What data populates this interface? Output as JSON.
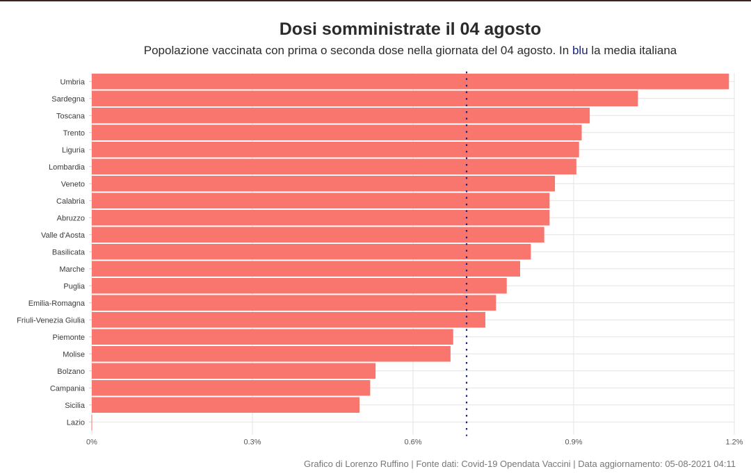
{
  "chart_data": {
    "type": "bar",
    "orientation": "horizontal",
    "title": "Dosi somministrate il 04 agosto",
    "subtitle_parts": [
      "Popolazione vaccinata con prima o seconda dose nella giornata del 04 agosto. In ",
      "blu",
      " la media italiana"
    ],
    "caption": "Grafico di Lorenzo Ruffino | Fonte dati: Covid-19 Opendata Vaccini | Data aggiornamento: 05-08-2021 04:11",
    "xlabel": "",
    "ylabel": "",
    "xlim": [
      0,
      1.2
    ],
    "xticks": [
      0,
      0.3,
      0.6,
      0.9,
      1.2
    ],
    "xtick_labels": [
      "0%",
      "0.3%",
      "0.6%",
      "0.9%",
      "1.2%"
    ],
    "grid": true,
    "categories": [
      "Umbria",
      "Sardegna",
      "Toscana",
      "Trento",
      "Liguria",
      "Lombardia",
      "Veneto",
      "Calabria",
      "Abruzzo",
      "Valle d'Aosta",
      "Basilicata",
      "Marche",
      "Puglia",
      "Emilia-Romagna",
      "Friuli-Venezia Giulia",
      "Piemonte",
      "Molise",
      "Bolzano",
      "Campania",
      "Sicilia",
      "Lazio"
    ],
    "values": [
      1.19,
      1.02,
      0.93,
      0.915,
      0.91,
      0.905,
      0.865,
      0.855,
      0.855,
      0.845,
      0.82,
      0.8,
      0.775,
      0.755,
      0.735,
      0.675,
      0.67,
      0.53,
      0.52,
      0.5,
      0.0
    ],
    "reference_line": {
      "label": "media italiana",
      "value": 0.7
    },
    "colors": {
      "bar": "#f8766d",
      "mean_line": "#1a237e",
      "grid": "#e3e3e3"
    }
  }
}
